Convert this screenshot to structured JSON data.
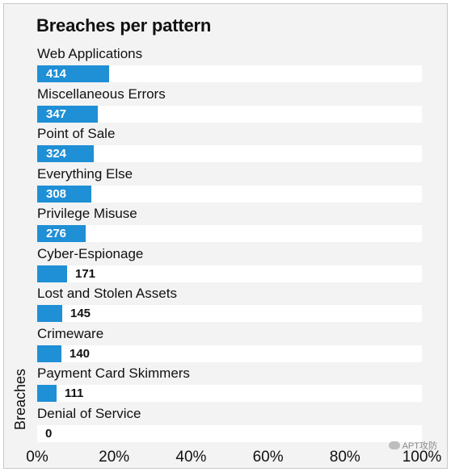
{
  "chart_data": {
    "type": "bar",
    "orientation": "horizontal",
    "title": "Breaches per pattern",
    "ylabel": "Breaches",
    "categories": [
      "Web Applications",
      "Miscellaneous Errors",
      "Point of Sale",
      "Everything Else",
      "Privilege Misuse",
      "Cyber-Espionage",
      "Lost and Stolen Assets",
      "Crimeware",
      "Payment Card Skimmers",
      "Denial of Service"
    ],
    "values": [
      414,
      347,
      324,
      308,
      276,
      171,
      145,
      140,
      111,
      0
    ],
    "percent_of_breaches": [
      0.188,
      0.158,
      0.147,
      0.14,
      0.125,
      0.078,
      0.066,
      0.064,
      0.05,
      0.0
    ],
    "value_labels": [
      "414",
      "347",
      "324",
      "308",
      "276",
      "171",
      "145",
      "140",
      "111",
      "0"
    ],
    "xlim": [
      0,
      100
    ],
    "xticks": [
      "0%",
      "20%",
      "40%",
      "60%",
      "80%",
      "100%"
    ],
    "grid": false,
    "legend": "none",
    "bar_color": "#1f8fd6"
  },
  "watermark": "APT攻防"
}
